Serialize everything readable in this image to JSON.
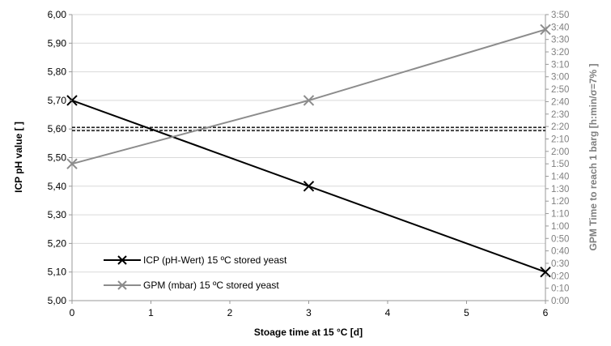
{
  "chart_data": {
    "type": "line",
    "xlabel": "Stoage time at 15 °C [d]",
    "ylabel": "ICP pH value [ ]",
    "ylabel_right": "GPM Time to reach 1 barg [h:min/σ=7% ]",
    "x_ticks": [
      "0",
      "1",
      "2",
      "3",
      "4",
      "5",
      "6"
    ],
    "xlim": [
      0,
      6
    ],
    "ylim": [
      5.0,
      6.0
    ],
    "y_ticks": [
      "5,00",
      "5,10",
      "5,20",
      "5,30",
      "5,40",
      "5,50",
      "5,60",
      "5,70",
      "5,80",
      "5,90",
      "6,00"
    ],
    "y2lim_minutes": [
      0,
      230
    ],
    "y2_ticks": [
      "0:00",
      "0:10",
      "0:20",
      "0:30",
      "0:40",
      "0:50",
      "1:00",
      "1:10",
      "1:20",
      "1:30",
      "1:40",
      "1:50",
      "2:00",
      "2:10",
      "2:20",
      "2:30",
      "2:40",
      "2:50",
      "3:00",
      "3:10",
      "3:20",
      "3:30",
      "3:40",
      "3:50"
    ],
    "grid": "horizontal",
    "legend_position": "bottom-left",
    "series": [
      {
        "name": "ICP (pH-Wert) 15 ºC stored yeast",
        "axis": "left",
        "color": "#000000",
        "marker": "x",
        "x": [
          0,
          3,
          6
        ],
        "y": [
          5.7,
          5.4,
          5.1
        ]
      },
      {
        "name": "GPM (mbar) 15 ºC stored yeast",
        "axis": "right",
        "color": "#8c8c8c",
        "marker": "x",
        "x": [
          0,
          3,
          6
        ],
        "y_minutes": [
          110,
          161,
          218
        ]
      }
    ],
    "reference_line": {
      "y": 5.6,
      "style": "double-dashed"
    }
  }
}
